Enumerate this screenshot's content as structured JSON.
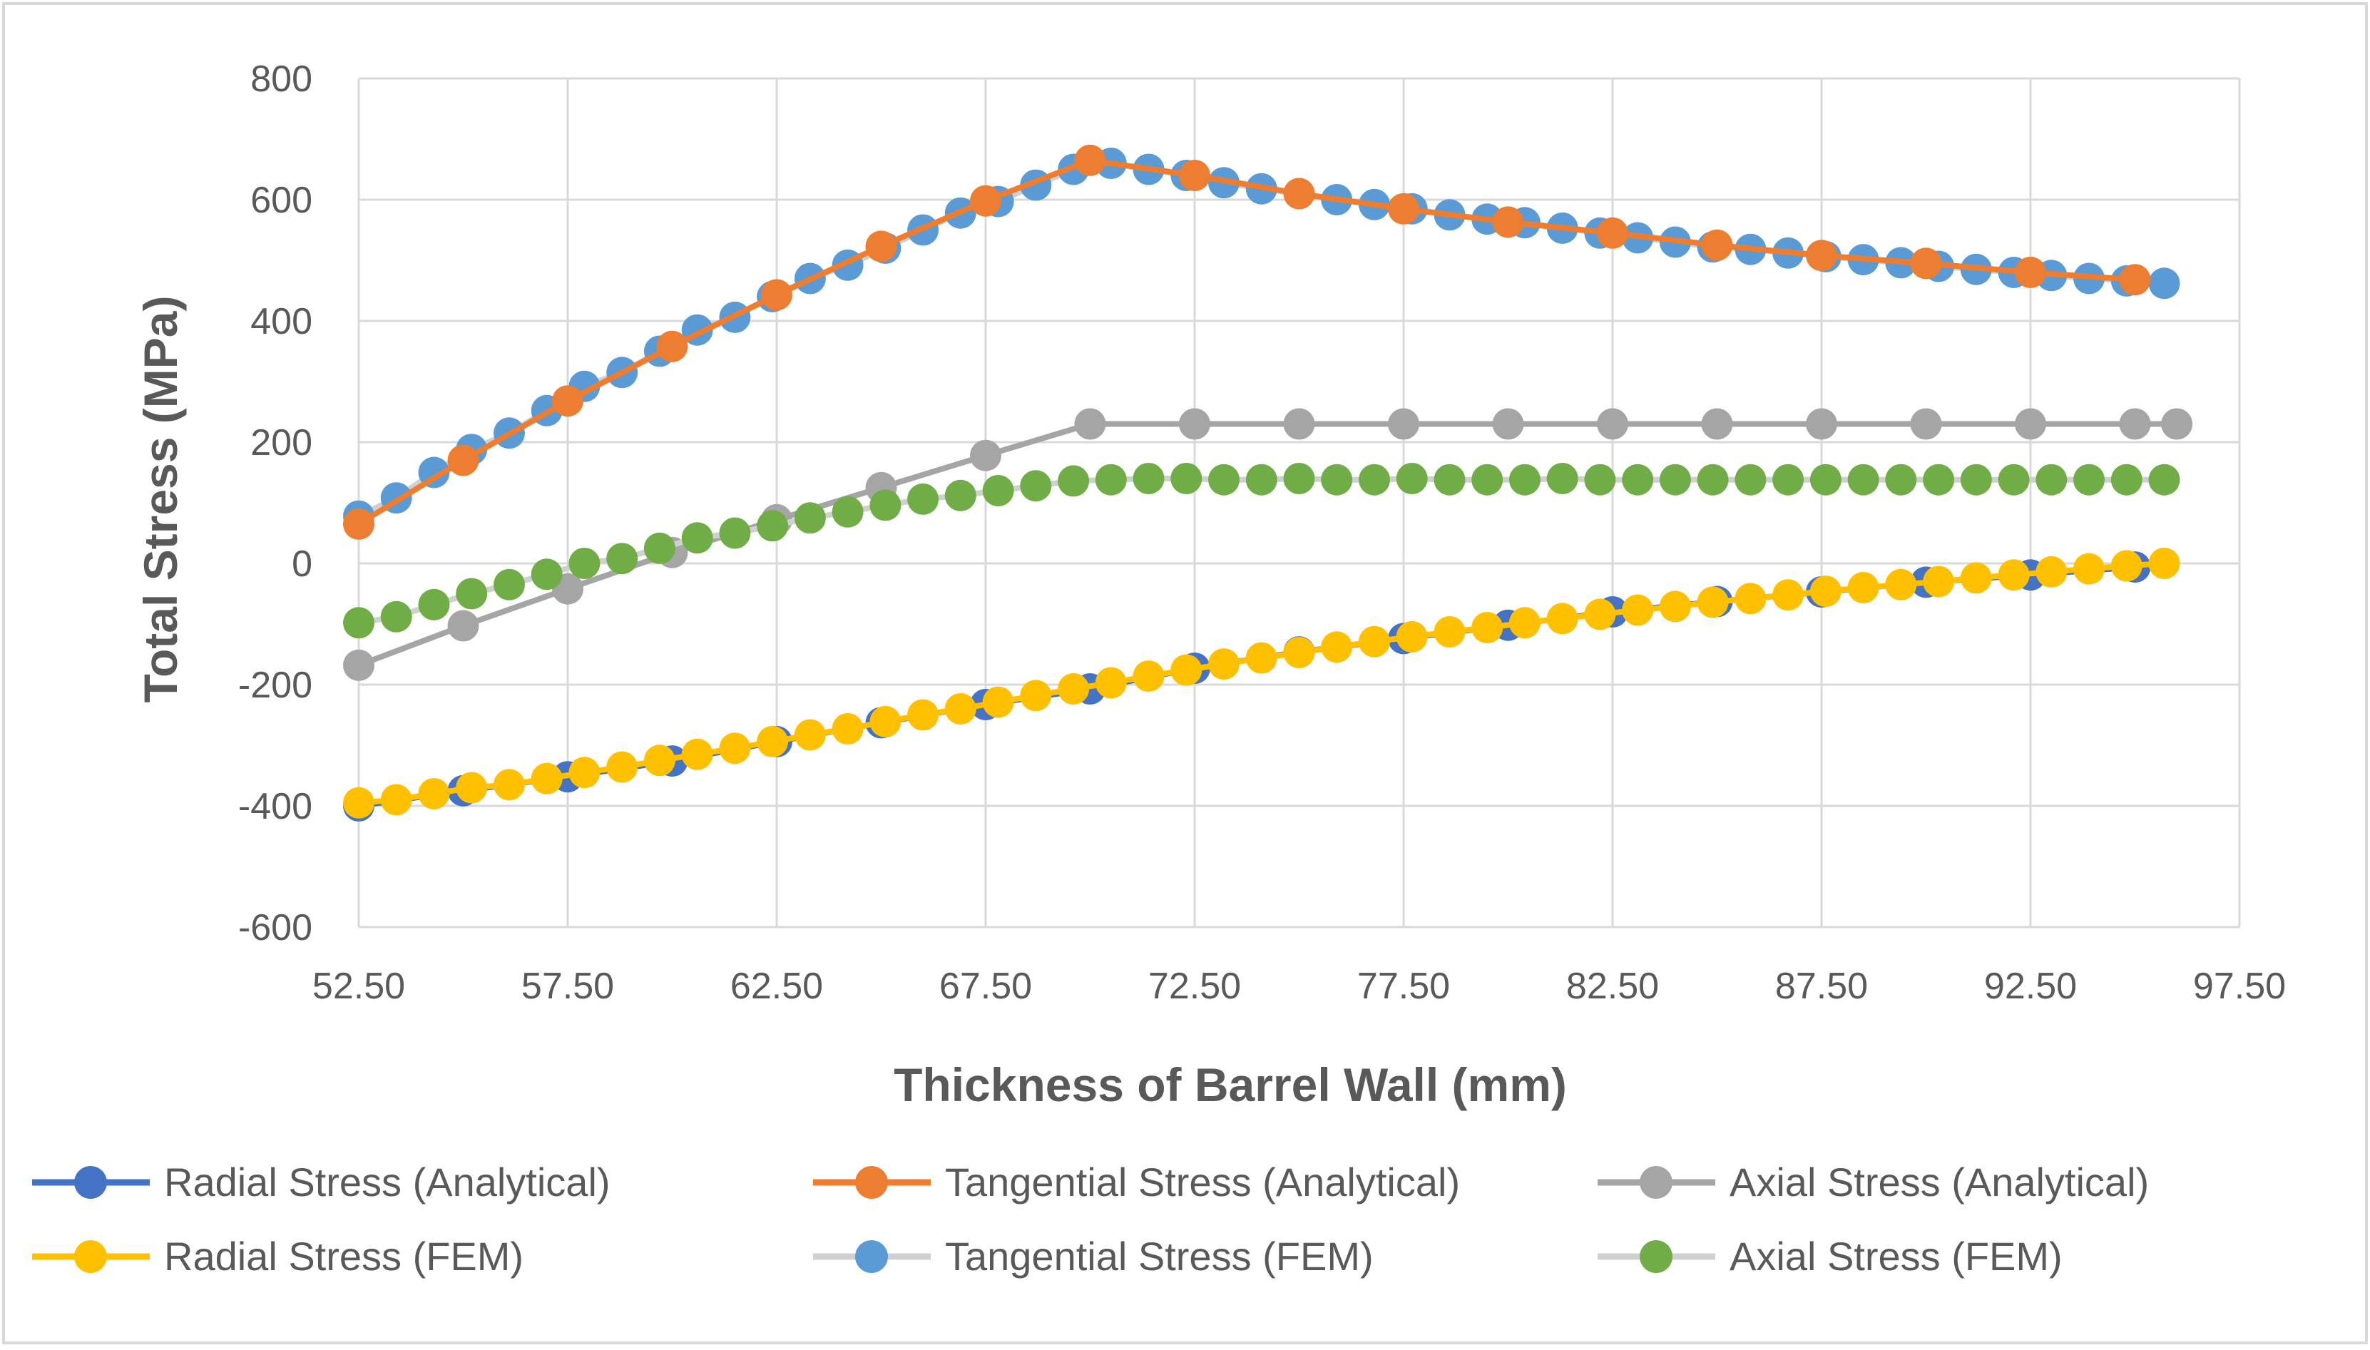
{
  "chart_data": {
    "type": "line",
    "title": "",
    "xlabel": "Thickness of Barrel Wall (mm)",
    "ylabel": "Total Stress (MPa)",
    "xlim": [
      52.5,
      97.5
    ],
    "ylim": [
      -600,
      800
    ],
    "x_ticks": [
      "52.50",
      "57.50",
      "62.50",
      "67.50",
      "72.50",
      "77.50",
      "82.50",
      "87.50",
      "92.50",
      "97.50"
    ],
    "y_ticks": [
      "800",
      "600",
      "400",
      "200",
      "0",
      "-200",
      "-400",
      "-600"
    ],
    "x_tick_values": [
      52.5,
      57.5,
      62.5,
      67.5,
      72.5,
      77.5,
      82.5,
      87.5,
      92.5,
      97.5
    ],
    "y_tick_values": [
      800,
      600,
      400,
      200,
      0,
      -200,
      -400,
      -600
    ],
    "grid": true,
    "legend_position": "bottom",
    "series": [
      {
        "name": "Radial Stress (Analytical)",
        "color": "#4472C4",
        "line_color": "#4472C4",
        "x": [
          52.5,
          55,
          57.5,
          60,
          62.5,
          65,
          67.5,
          70,
          72.5,
          75,
          77.5,
          80,
          82.5,
          85,
          87.5,
          90,
          92.5,
          95
        ],
        "y": [
          -400,
          -375,
          -352,
          -326,
          -294,
          -263,
          -233,
          -207,
          -173,
          -146,
          -124,
          -102,
          -80,
          -63,
          -47,
          -31,
          -19,
          -6
        ]
      },
      {
        "name": "Tangential Stress (Analytical)",
        "color": "#ED7D31",
        "line_color": "#ED7D31",
        "x": [
          52.5,
          55,
          57.5,
          60,
          62.5,
          65,
          67.5,
          70,
          72.5,
          75,
          77.5,
          80,
          82.5,
          85,
          87.5,
          90,
          92.5,
          95
        ],
        "y": [
          65,
          170,
          268,
          358,
          443,
          523,
          598,
          665,
          640,
          610,
          585,
          563,
          545,
          525,
          508,
          495,
          480,
          468
        ]
      },
      {
        "name": "Axial Stress (Analytical)",
        "color": "#A5A5A5",
        "line_color": "#A5A5A5",
        "x": [
          52.5,
          55,
          57.5,
          60,
          62.5,
          65,
          67.5,
          70,
          72.5,
          75,
          77.5,
          80,
          82.5,
          85,
          87.5,
          90,
          92.5,
          95,
          96
        ],
        "y": [
          -168,
          -103,
          -42,
          18,
          72,
          125,
          178,
          230,
          230,
          230,
          230,
          230,
          230,
          230,
          230,
          230,
          230,
          230,
          230
        ]
      },
      {
        "name": "Radial Stress (FEM)",
        "color": "#FFC000",
        "line_color": "#FFC000",
        "x": [
          52.5,
          53.4,
          54.3,
          55.2,
          56.1,
          57,
          57.9,
          58.8,
          59.7,
          60.6,
          61.5,
          62.4,
          63.3,
          64.2,
          65.1,
          66,
          66.9,
          67.8,
          68.7,
          69.6,
          70.5,
          71.4,
          72.3,
          73.2,
          74.1,
          75,
          75.9,
          76.8,
          77.7,
          78.6,
          79.5,
          80.4,
          81.3,
          82.2,
          83.1,
          84,
          84.9,
          85.8,
          86.7,
          87.6,
          88.5,
          89.4,
          90.3,
          91.2,
          92.1,
          93,
          93.9,
          94.8,
          95.7
        ],
        "y": [
          -395,
          -390,
          -380,
          -370,
          -365,
          -355,
          -345,
          -336,
          -325,
          -315,
          -305,
          -294,
          -283,
          -273,
          -261,
          -250,
          -240,
          -229,
          -218,
          -207,
          -197,
          -186,
          -176,
          -166,
          -156,
          -147,
          -138,
          -129,
          -121,
          -113,
          -106,
          -98,
          -91,
          -84,
          -77,
          -71,
          -64,
          -58,
          -52,
          -46,
          -40,
          -35,
          -30,
          -24,
          -19,
          -14,
          -9,
          -4,
          0
        ]
      },
      {
        "name": "Tangential Stress (FEM)",
        "color": "#5B9BD5",
        "line_color": "#D0D0D0",
        "x": [
          52.5,
          53.4,
          54.3,
          55.2,
          56.1,
          57,
          57.9,
          58.8,
          59.7,
          60.6,
          61.5,
          62.4,
          63.3,
          64.2,
          65.1,
          66,
          66.9,
          67.8,
          68.7,
          69.6,
          70.5,
          71.4,
          72.3,
          73.2,
          74.1,
          75,
          75.9,
          76.8,
          77.7,
          78.6,
          79.5,
          80.4,
          81.3,
          82.2,
          83.1,
          84,
          84.9,
          85.8,
          86.7,
          87.6,
          88.5,
          89.4,
          90.3,
          91.2,
          92.1,
          93,
          93.9,
          94.8,
          95.7
        ],
        "y": [
          78,
          108,
          150,
          188,
          215,
          252,
          292,
          315,
          350,
          385,
          406,
          440,
          470,
          492,
          520,
          550,
          578,
          597,
          624,
          650,
          660,
          650,
          640,
          628,
          618,
          610,
          600,
          592,
          585,
          575,
          568,
          562,
          553,
          545,
          537,
          530,
          522,
          518,
          512,
          506,
          501,
          496,
          490,
          485,
          480,
          475,
          470,
          466,
          462
        ]
      },
      {
        "name": "Axial Stress (FEM)",
        "color": "#70AD47",
        "line_color": "#D0D0D0",
        "x": [
          52.5,
          53.4,
          54.3,
          55.2,
          56.1,
          57,
          57.9,
          58.8,
          59.7,
          60.6,
          61.5,
          62.4,
          63.3,
          64.2,
          65.1,
          66,
          66.9,
          67.8,
          68.7,
          69.6,
          70.5,
          71.4,
          72.3,
          73.2,
          74.1,
          75,
          75.9,
          76.8,
          77.7,
          78.6,
          79.5,
          80.4,
          81.3,
          82.2,
          83.1,
          84,
          84.9,
          85.8,
          86.7,
          87.6,
          88.5,
          89.4,
          90.3,
          91.2,
          92.1,
          93,
          93.9,
          94.8,
          95.7
        ],
        "y": [
          -98,
          -88,
          -68,
          -50,
          -35,
          -18,
          0,
          8,
          25,
          42,
          50,
          62,
          75,
          85,
          96,
          106,
          112,
          120,
          128,
          136,
          138,
          140,
          140,
          138,
          138,
          140,
          138,
          138,
          140,
          138,
          138,
          138,
          140,
          138,
          138,
          138,
          138,
          138,
          138,
          138,
          138,
          138,
          138,
          138,
          138,
          138,
          138,
          138,
          138
        ]
      }
    ]
  }
}
